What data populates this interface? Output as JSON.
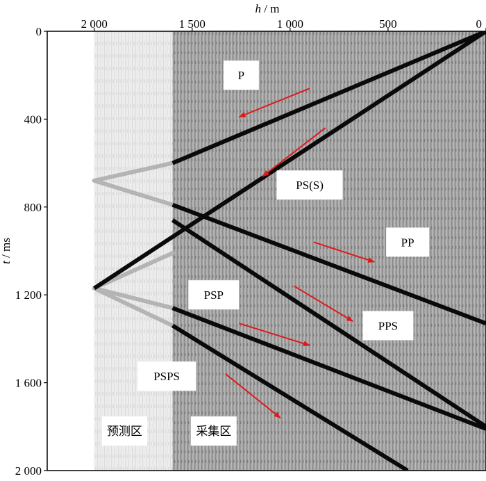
{
  "chart_data": {
    "type": "line",
    "title": "",
    "xlabel": "h / m",
    "xlabel_var": "h",
    "xlabel_unit": "m",
    "ylabel": "t / ms",
    "ylabel_var": "t",
    "ylabel_unit": "ms",
    "x_axis_position": "top",
    "x_reversed": true,
    "xlim": [
      2240,
      0
    ],
    "ylim": [
      0,
      2000
    ],
    "x_ticks": [
      {
        "value": 2000,
        "label": "2 000"
      },
      {
        "value": 1500,
        "label": "1 500"
      },
      {
        "value": 1000,
        "label": "1 000"
      },
      {
        "value": 500,
        "label": "500"
      },
      {
        "value": 0,
        "label": "0"
      }
    ],
    "y_ticks": [
      {
        "value": 0,
        "label": "0"
      },
      {
        "value": 400,
        "label": "400"
      },
      {
        "value": 800,
        "label": "800"
      },
      {
        "value": 1200,
        "label": "1 200"
      },
      {
        "value": 1600,
        "label": "1 600"
      },
      {
        "value": 2000,
        "label": "2 000"
      }
    ],
    "regions": [
      {
        "name": "prediction-zone",
        "label": "预测区",
        "x_range": [
          2000,
          1600
        ]
      },
      {
        "name": "acquisition-zone",
        "label": "采集区",
        "x_range": [
          1600,
          0
        ]
      }
    ],
    "series": [
      {
        "name": "P",
        "x": [
          0,
          1600
        ],
        "y": [
          0,
          600
        ]
      },
      {
        "name": "PS(S)",
        "x": [
          0,
          2000
        ],
        "y": [
          0,
          1170
        ]
      },
      {
        "name": "PP",
        "x": [
          1600,
          0
        ],
        "y": [
          790,
          1330
        ]
      },
      {
        "name": "PPS",
        "x": [
          1600,
          0
        ],
        "y": [
          860,
          1800
        ]
      },
      {
        "name": "PSP",
        "x": [
          1600,
          0
        ],
        "y": [
          1260,
          1810
        ]
      },
      {
        "name": "PSPS",
        "x": [
          1600,
          400
        ],
        "y": [
          1340,
          2000
        ]
      }
    ],
    "predicted_series": [
      {
        "name": "P-predicted",
        "x": [
          1600,
          2000
        ],
        "y": [
          600,
          680
        ]
      },
      {
        "name": "PP-predicted",
        "x": [
          1600,
          2000
        ],
        "y": [
          790,
          680
        ]
      },
      {
        "name": "PS-predicted",
        "x": [
          1600,
          2000
        ],
        "y": [
          1010,
          1170
        ]
      },
      {
        "name": "PSP-predicted",
        "x": [
          1600,
          2000
        ],
        "y": [
          1260,
          1170
        ]
      },
      {
        "name": "PSPS-predicted",
        "x": [
          1600,
          2000
        ],
        "y": [
          1340,
          1170
        ]
      }
    ],
    "annotations": [
      {
        "text": "P",
        "x": 1250,
        "y": 200
      },
      {
        "text": "PS(S)",
        "x": 900,
        "y": 700
      },
      {
        "text": "PP",
        "x": 400,
        "y": 960
      },
      {
        "text": "PSP",
        "x": 1390,
        "y": 1200
      },
      {
        "text": "PPS",
        "x": 500,
        "y": 1340
      },
      {
        "text": "PSPS",
        "x": 1630,
        "y": 1570
      },
      {
        "text": "预测区",
        "x": 1845,
        "y": 1820
      },
      {
        "text": "采集区",
        "x": 1390,
        "y": 1820
      }
    ],
    "arrows": [
      {
        "name": "P",
        "from": [
          900,
          260
        ],
        "to": [
          1260,
          390
        ]
      },
      {
        "name": "PS",
        "from": [
          820,
          440
        ],
        "to": [
          1140,
          660
        ]
      },
      {
        "name": "PP",
        "from": [
          880,
          960
        ],
        "to": [
          570,
          1050
        ]
      },
      {
        "name": "PPS",
        "from": [
          980,
          1160
        ],
        "to": [
          680,
          1320
        ]
      },
      {
        "name": "PSP",
        "from": [
          1260,
          1330
        ],
        "to": [
          900,
          1430
        ]
      },
      {
        "name": "PSPS",
        "from": [
          1330,
          1560
        ],
        "to": [
          1050,
          1760
        ]
      }
    ],
    "colors": {
      "event": "#0a0a0a",
      "predicted": "#b4b4b4",
      "arrow": "#e0191c",
      "acquisition_bg": "#9a9a9a",
      "prediction_bg": "#e8e8e8"
    }
  }
}
